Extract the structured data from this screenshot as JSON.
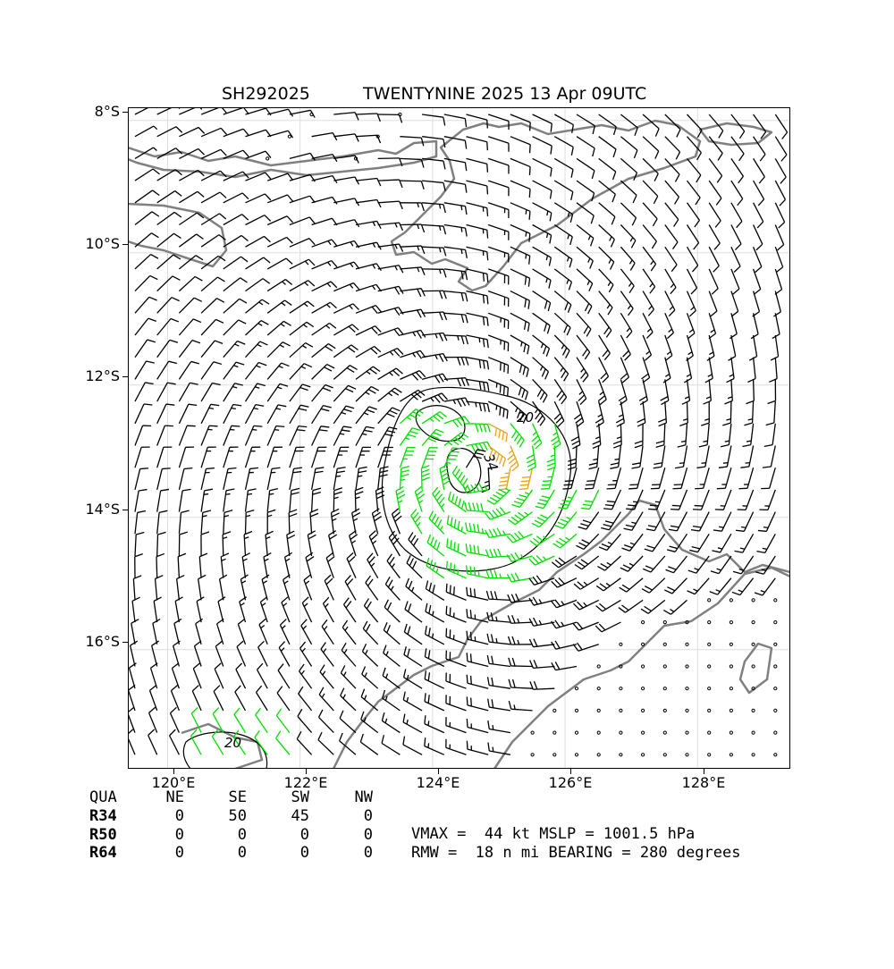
{
  "title": {
    "storm_id": "SH292025",
    "storm_name_time": "TWENTYNINE 2025 13 Apr 09UTC"
  },
  "axes": {
    "lat_ticks": [
      "8°S",
      "10°S",
      "12°S",
      "14°S",
      "16°S"
    ],
    "lon_ticks": [
      "120°E",
      "122°E",
      "124°E",
      "126°E",
      "128°E"
    ]
  },
  "contours": {
    "label_20_main": "20",
    "label_34": "34",
    "label_20_sw": "20"
  },
  "colors": {
    "barb_default": "#000000",
    "barb_34kt": "#00e000",
    "barb_50kt": "#e8a317",
    "coastline": "#808080",
    "grid": "#dddddd"
  },
  "wind_radii_table": {
    "header": [
      "QUA",
      "NE",
      "SE",
      "SW",
      "NW"
    ],
    "rows": [
      {
        "label": "R34",
        "values": [
          "0",
          "50",
          "45",
          "0"
        ]
      },
      {
        "label": "R50",
        "values": [
          "0",
          "0",
          "0",
          "0"
        ]
      },
      {
        "label": "R64",
        "values": [
          "0",
          "0",
          "0",
          "0"
        ]
      }
    ]
  },
  "stats": {
    "line1": "VMAX =  44 kt MSLP = 1001.5 hPa",
    "line2": "RMW =  18 n mi BEARING = 280 degrees"
  },
  "map_data": {
    "center": {
      "lat": -13.3,
      "lon": 124.7
    },
    "vmax_kt": 44,
    "rmw_nmi": 18,
    "bearing_deg": 280,
    "lon_range": [
      119.4,
      129.4
    ],
    "lat_range": [
      -17.8,
      -7.8
    ]
  }
}
